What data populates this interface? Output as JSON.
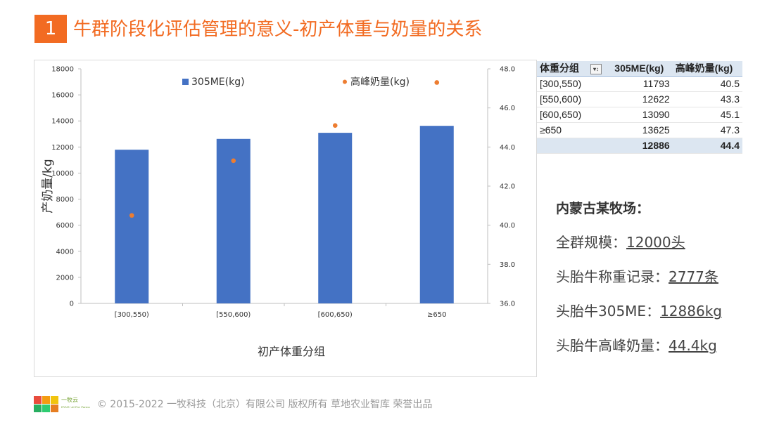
{
  "slide": {
    "number": "1",
    "title": "牛群阶段化评估管理的意义-初产体重与奶量的关系"
  },
  "chart_data": {
    "type": "bar",
    "categories": [
      "[300,550)",
      "[550,600)",
      "[600,650)",
      "≥650"
    ],
    "series": [
      {
        "name": "305ME(kg)",
        "kind": "bar",
        "axis": "left",
        "color": "#4472c4",
        "values": [
          11793,
          12622,
          13090,
          13625
        ]
      },
      {
        "name": "高峰奶量(kg)",
        "kind": "scatter",
        "axis": "right",
        "color": "#ed7d31",
        "values": [
          40.5,
          43.3,
          45.1,
          47.3
        ]
      }
    ],
    "xlabel": "初产体重分组",
    "ylabel": "产奶量/kg",
    "ylim": [
      0,
      18000
    ],
    "yticks": [
      "0",
      "2000",
      "4000",
      "6000",
      "8000",
      "10000",
      "12000",
      "14000",
      "16000",
      "18000"
    ],
    "y2lim": [
      36,
      48
    ],
    "y2ticks": [
      "36.0",
      "38.0",
      "40.0",
      "42.0",
      "44.0",
      "46.0",
      "48.0"
    ],
    "legend": "top",
    "grid": false
  },
  "table": {
    "headers": [
      "体重分组",
      "305ME(kg)",
      "高峰奶量(kg)"
    ],
    "filter_icon": "▾↕",
    "rows": [
      [
        "[300,550)",
        "11793",
        "40.5"
      ],
      [
        "[550,600)",
        "12622",
        "43.3"
      ],
      [
        "[600,650)",
        "13090",
        "45.1"
      ],
      [
        "≥650",
        "13625",
        "47.3"
      ]
    ],
    "total": [
      "",
      "12886",
      "44.4"
    ]
  },
  "farm": {
    "title": "内蒙古某牧场：",
    "stats": [
      {
        "label": "全群规模：",
        "value": "12000头"
      },
      {
        "label": "头胎牛称重记录：",
        "value": "2777条"
      },
      {
        "label": "头胎牛305ME：",
        "value": "12886kg"
      },
      {
        "label": "头胎牛高峰奶量：",
        "value": "44.4kg"
      }
    ]
  },
  "footer": {
    "logo_text": "一牧云",
    "logo_sub": "EYMU AI For Farms",
    "logo_colors": [
      "#e84c3d",
      "#f39c12",
      "#f1c40f",
      "#27ae60",
      "#2ecc71",
      "#e67e22"
    ],
    "copyright": "© 2015-2022 一牧科技（北京）有限公司 版权所有 草地农业智库 荣誉出品"
  }
}
